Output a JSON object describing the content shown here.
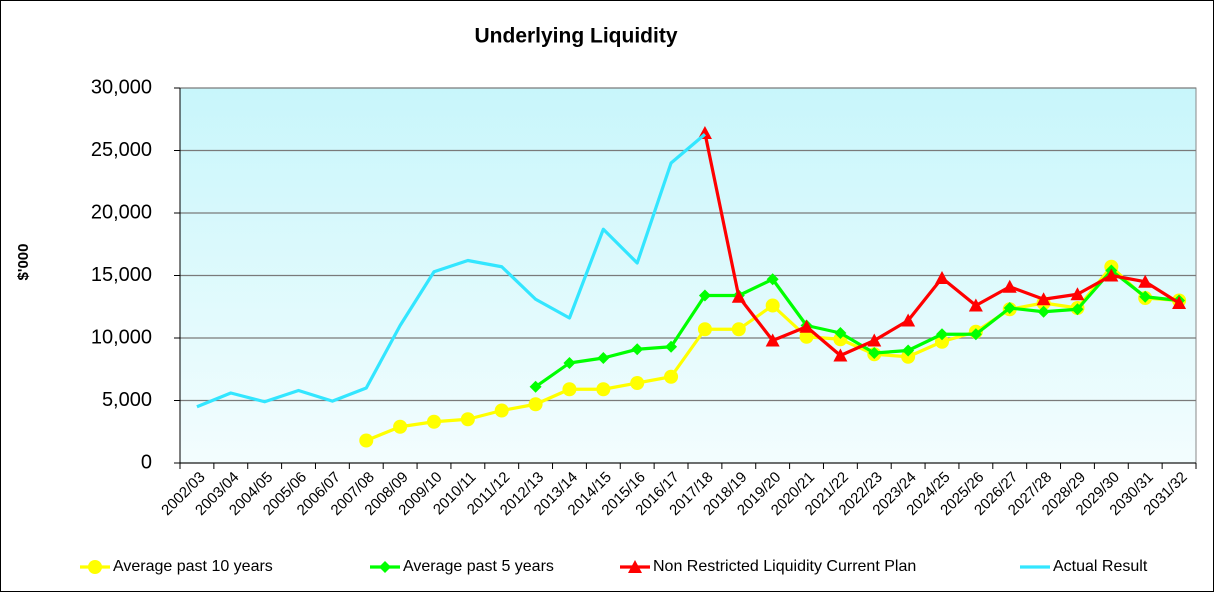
{
  "chart_data": {
    "type": "line",
    "title": "Underlying Liquidity",
    "y_label": "$'000",
    "categories": [
      "2002/03",
      "2003/04",
      "2004/05",
      "2005/06",
      "2006/07",
      "2007/08",
      "2008/09",
      "2009/10",
      "2010/11",
      "2011/12",
      "2012/13",
      "2013/14",
      "2014/15",
      "2015/16",
      "2016/17",
      "2017/18",
      "2018/19",
      "2019/20",
      "2020/21",
      "2021/22",
      "2022/23",
      "2023/24",
      "2024/25",
      "2025/26",
      "2026/27",
      "2027/28",
      "2028/29",
      "2029/30",
      "2030/31",
      "2031/32"
    ],
    "series": [
      {
        "name": "Average past 10 years",
        "color": "#ffff00",
        "marker": "circle",
        "values": [
          null,
          null,
          null,
          null,
          null,
          1800,
          2900,
          3300,
          3500,
          4200,
          4700,
          5900,
          5900,
          6400,
          6900,
          10700,
          10700,
          12600,
          10100,
          9900,
          8700,
          8500,
          9700,
          10500,
          12300,
          12800,
          12400,
          15700,
          13200,
          13000
        ]
      },
      {
        "name": "Average past 5 years",
        "color": "#00ff00",
        "marker": "diamond",
        "values": [
          null,
          null,
          null,
          null,
          null,
          null,
          null,
          null,
          null,
          null,
          6100,
          8000,
          8400,
          9100,
          9300,
          13400,
          13400,
          14700,
          11000,
          10400,
          8800,
          9000,
          10300,
          10300,
          12400,
          12100,
          12300,
          15400,
          13300,
          13000
        ]
      },
      {
        "name": "Non Restricted Liquidity Current Plan",
        "color": "#ff0000",
        "marker": "triangle",
        "values": [
          null,
          null,
          null,
          null,
          null,
          null,
          null,
          null,
          null,
          null,
          null,
          null,
          null,
          null,
          null,
          26400,
          13300,
          9800,
          10900,
          8600,
          9800,
          11400,
          14800,
          12600,
          14100,
          13100,
          13500,
          15000,
          14500,
          12800
        ]
      },
      {
        "name": "Actual Result",
        "color": "#33e6ff",
        "marker": "none",
        "values": [
          4500,
          5600,
          4900,
          5800,
          4950,
          6000,
          11000,
          15300,
          16200,
          15700,
          13100,
          11600,
          18700,
          16000,
          24000,
          26300,
          null,
          null,
          null,
          null,
          null,
          null,
          null,
          null,
          null,
          null,
          null,
          null,
          null,
          null
        ]
      }
    ],
    "ylim": [
      0,
      30000
    ],
    "yticks": [
      0,
      {
        "value": 5000,
        "label": "5,000"
      },
      {
        "value": 10000,
        "label": "10,000"
      },
      {
        "value": 15000,
        "label": "15,000"
      },
      {
        "value": 20000,
        "label": "20,000"
      },
      {
        "value": 25000,
        "label": "25,000"
      },
      {
        "value": 30000,
        "label": "30,000"
      }
    ],
    "grid": true,
    "legend": "bottom"
  }
}
